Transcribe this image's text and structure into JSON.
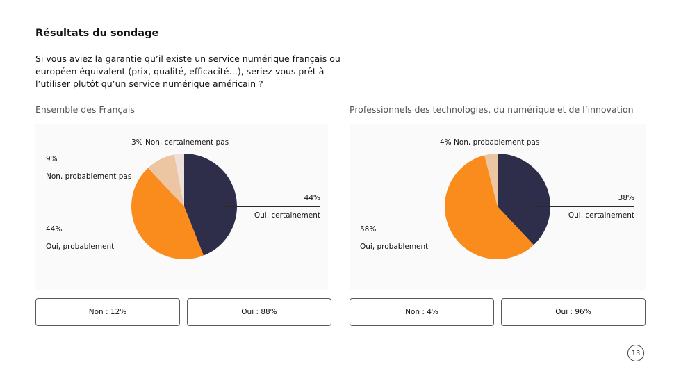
{
  "header": {
    "title": "Résultats du sondage",
    "question": "Si vous aviez la garantie qu’il existe un service numérique français ou européen équivalent (prix, qualité, efficacité…), seriez-vous prêt à l’utiliser plutôt qu’un service numérique américain ?"
  },
  "colors": {
    "oui_certainement": "#2f2e4a",
    "oui_probablement": "#fa8c1e",
    "non_probablement": "#ecc6a3",
    "non_certainement": "#eee0d8"
  },
  "chart_data": [
    {
      "type": "pie",
      "title": "Ensemble des Français",
      "slices": [
        {
          "label": "Oui, certainement",
          "value": 44,
          "display": "44%"
        },
        {
          "label": "Oui, probablement",
          "value": 44,
          "display": "44%"
        },
        {
          "label": "Non, probablement pas",
          "value": 9,
          "display": "9%"
        },
        {
          "label": "Non, certainement pas",
          "value": 3,
          "display": "3% Non, certainement pas"
        }
      ],
      "summary": {
        "non": "Non : 12%",
        "oui": "Oui : 88%"
      }
    },
    {
      "type": "pie",
      "title": "Professionnels des technologies, du numérique et de l’innovation",
      "slices": [
        {
          "label": "Oui, certainement",
          "value": 38,
          "display": "38%"
        },
        {
          "label": "Oui, probablement",
          "value": 58,
          "display": "58%"
        },
        {
          "label": "Non, probablement pas",
          "value": 4,
          "display": "4% Non, probablement pas"
        }
      ],
      "summary": {
        "non": "Non : 4%",
        "oui": "Oui : 96%"
      }
    }
  ],
  "page_number": "13"
}
